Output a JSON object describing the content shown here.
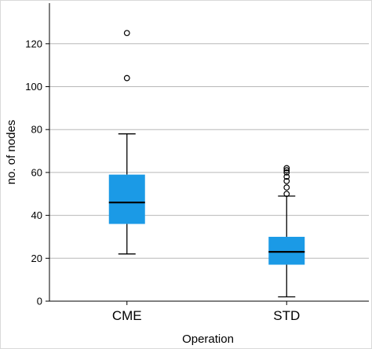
{
  "chart_data": {
    "type": "boxplot",
    "title": "",
    "xlabel": "Operation",
    "ylabel": "no. of nodes",
    "ylim": [
      0,
      135
    ],
    "yticks": [
      0,
      20,
      40,
      60,
      80,
      100,
      120
    ],
    "grid": "horizontal",
    "box_color": "#1b9ae6",
    "categories": [
      "CME",
      "STD"
    ],
    "boxes": [
      {
        "category": "CME",
        "whisker_low": 22,
        "q1": 36,
        "median": 46,
        "q3": 59,
        "whisker_high": 78,
        "outliers": [
          104,
          125
        ]
      },
      {
        "category": "STD",
        "whisker_low": 2,
        "q1": 17,
        "median": 23,
        "q3": 30,
        "whisker_high": 49,
        "outliers": [
          50,
          53,
          56,
          58,
          60,
          61,
          62
        ]
      }
    ]
  }
}
